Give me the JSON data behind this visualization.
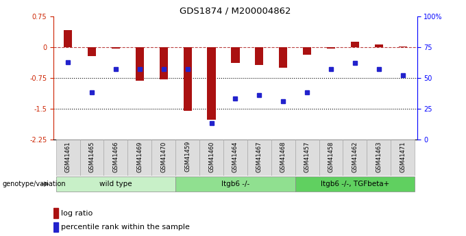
{
  "title": "GDS1874 / M200004862",
  "samples": [
    "GSM41461",
    "GSM41465",
    "GSM41466",
    "GSM41469",
    "GSM41470",
    "GSM41459",
    "GSM41460",
    "GSM41464",
    "GSM41467",
    "GSM41468",
    "GSM41457",
    "GSM41458",
    "GSM41462",
    "GSM41463",
    "GSM41471"
  ],
  "log_ratio": [
    0.42,
    -0.22,
    -0.04,
    -0.82,
    -0.79,
    -1.55,
    -1.78,
    -0.38,
    -0.44,
    -0.5,
    -0.18,
    -0.04,
    0.13,
    0.06,
    0.02
  ],
  "percentile_rank": [
    63,
    38,
    57,
    57,
    57,
    57,
    13,
    33,
    36,
    31,
    38,
    57,
    62,
    57,
    52
  ],
  "groups": [
    {
      "label": "wild type",
      "start": 0,
      "end": 5,
      "color": "#c8f0c8"
    },
    {
      "label": "Itgb6 -/-",
      "start": 5,
      "end": 10,
      "color": "#90e090"
    },
    {
      "label": "Itgb6 -/-, TGFbeta+",
      "start": 10,
      "end": 15,
      "color": "#60d060"
    }
  ],
  "ylim_left": [
    -2.25,
    0.75
  ],
  "ylim_right": [
    0,
    100
  ],
  "yticks_left": [
    0.75,
    0,
    -0.75,
    -1.5,
    -2.25
  ],
  "yticks_right": [
    100,
    75,
    50,
    25,
    0
  ],
  "bar_color": "#aa1111",
  "dot_color": "#2222cc",
  "dotted_lines": [
    -0.75,
    -1.5
  ],
  "legend_bar_label": "log ratio",
  "legend_dot_label": "percentile rank within the sample",
  "genotype_label": "genotype/variation",
  "bar_width": 0.35
}
